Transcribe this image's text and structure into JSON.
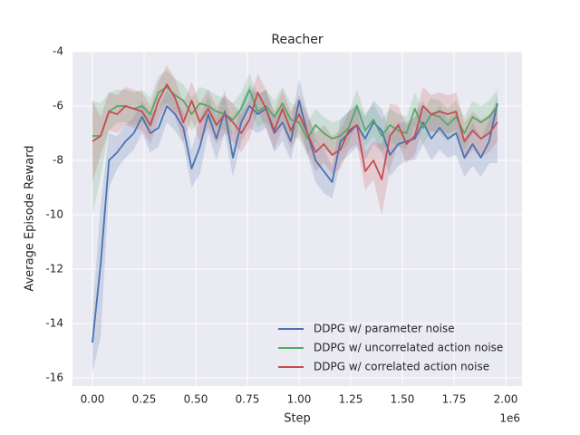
{
  "chart_data": {
    "type": "line",
    "title": "Reacher",
    "x_label": "Step",
    "y_label": "Average Episode Reward",
    "x_offset_label": "1e6",
    "x": [
      0,
      0.04,
      0.08,
      0.12,
      0.16,
      0.2,
      0.24,
      0.28,
      0.32,
      0.36,
      0.4,
      0.44,
      0.48,
      0.52,
      0.56,
      0.6,
      0.64,
      0.68,
      0.72,
      0.76,
      0.8,
      0.84,
      0.88,
      0.92,
      0.96,
      1.0,
      1.04,
      1.08,
      1.12,
      1.16,
      1.2,
      1.24,
      1.28,
      1.32,
      1.36,
      1.4,
      1.44,
      1.48,
      1.52,
      1.56,
      1.6,
      1.64,
      1.68,
      1.72,
      1.76,
      1.8,
      1.84,
      1.88,
      1.92,
      1.96
    ],
    "series": [
      {
        "name": "DDPG w/ parameter noise",
        "color": "#4c72b0",
        "values": [
          -14.7,
          -11.8,
          -8.0,
          -7.7,
          -7.3,
          -7.0,
          -6.4,
          -7.0,
          -6.8,
          -6.0,
          -6.3,
          -6.8,
          -8.3,
          -7.5,
          -6.3,
          -7.2,
          -6.2,
          -7.9,
          -6.6,
          -6.0,
          -6.3,
          -6.1,
          -7.0,
          -6.6,
          -7.3,
          -5.8,
          -7.0,
          -8.0,
          -8.4,
          -8.8,
          -7.3,
          -7.0,
          -6.7,
          -7.2,
          -6.6,
          -6.9,
          -7.8,
          -7.4,
          -7.3,
          -7.2,
          -6.6,
          -7.2,
          -6.8,
          -7.2,
          -7.0,
          -7.9,
          -7.4,
          -7.9,
          -7.3,
          -5.9
        ],
        "lower": [
          -15.8,
          -14.5,
          -9.0,
          -8.3,
          -7.9,
          -7.6,
          -7.0,
          -7.7,
          -7.5,
          -6.6,
          -6.9,
          -7.4,
          -9.0,
          -8.5,
          -7.0,
          -8.0,
          -7.0,
          -8.6,
          -7.3,
          -6.8,
          -7.0,
          -6.8,
          -7.7,
          -7.3,
          -8.0,
          -6.6,
          -7.8,
          -8.8,
          -9.2,
          -9.4,
          -8.1,
          -7.8,
          -7.5,
          -8.0,
          -7.4,
          -7.7,
          -8.6,
          -8.2,
          -8.0,
          -8.0,
          -7.4,
          -8.0,
          -7.6,
          -7.9,
          -7.8,
          -8.6,
          -8.2,
          -8.6,
          -8.1,
          -8.1
        ],
        "upper": [
          -13.6,
          -9.6,
          -7.0,
          -7.1,
          -6.7,
          -6.4,
          -5.8,
          -6.3,
          -6.1,
          -5.4,
          -5.7,
          -6.2,
          -7.6,
          -6.5,
          -5.6,
          -6.4,
          -5.4,
          -7.2,
          -5.9,
          -5.2,
          -5.6,
          -5.4,
          -6.3,
          -5.9,
          -6.6,
          -5.0,
          -6.2,
          -7.2,
          -7.6,
          -8.2,
          -6.5,
          -6.2,
          -5.9,
          -6.4,
          -5.8,
          -6.1,
          -7.0,
          -6.6,
          -6.6,
          -6.4,
          -5.8,
          -6.4,
          -6.0,
          -6.5,
          -6.2,
          -7.2,
          -6.6,
          -7.2,
          -6.5,
          -5.6
        ]
      },
      {
        "name": "DDPG w/ uncorrelated action noise",
        "color": "#55a868",
        "values": [
          -7.1,
          -7.1,
          -6.2,
          -6.0,
          -6.0,
          -6.1,
          -6.0,
          -6.3,
          -5.5,
          -5.3,
          -5.6,
          -5.8,
          -6.3,
          -5.9,
          -6.0,
          -6.2,
          -6.3,
          -6.5,
          -6.1,
          -5.4,
          -6.2,
          -6.0,
          -6.4,
          -5.9,
          -6.5,
          -6.6,
          -7.2,
          -6.7,
          -7.0,
          -7.2,
          -7.1,
          -6.8,
          -6.0,
          -6.9,
          -6.5,
          -7.1,
          -6.7,
          -6.9,
          -7.0,
          -6.1,
          -6.8,
          -6.3,
          -6.4,
          -6.7,
          -6.4,
          -7.0,
          -6.4,
          -6.6,
          -6.4,
          -6.0
        ],
        "lower": [
          -10.0,
          -8.6,
          -6.9,
          -6.6,
          -6.6,
          -6.7,
          -6.6,
          -6.9,
          -6.1,
          -5.9,
          -6.2,
          -6.4,
          -6.9,
          -6.5,
          -6.6,
          -6.8,
          -6.9,
          -7.1,
          -6.7,
          -6.0,
          -6.8,
          -6.6,
          -7.0,
          -6.5,
          -7.1,
          -7.2,
          -7.8,
          -7.3,
          -7.6,
          -7.8,
          -7.7,
          -7.4,
          -6.6,
          -7.5,
          -7.1,
          -7.7,
          -7.3,
          -7.5,
          -7.6,
          -6.7,
          -7.4,
          -6.9,
          -7.0,
          -7.3,
          -7.0,
          -7.6,
          -7.0,
          -7.2,
          -7.0,
          -6.6
        ],
        "upper": [
          -5.8,
          -5.9,
          -5.5,
          -5.4,
          -5.4,
          -5.5,
          -5.4,
          -5.7,
          -4.9,
          -4.7,
          -5.0,
          -5.2,
          -5.7,
          -5.3,
          -5.4,
          -5.6,
          -5.7,
          -5.9,
          -5.5,
          -4.8,
          -5.6,
          -5.4,
          -5.8,
          -5.3,
          -5.9,
          -6.0,
          -6.6,
          -6.1,
          -6.4,
          -6.6,
          -6.5,
          -6.2,
          -5.4,
          -6.3,
          -5.9,
          -6.5,
          -6.1,
          -6.3,
          -6.4,
          -5.5,
          -6.2,
          -5.7,
          -5.8,
          -6.1,
          -5.8,
          -6.4,
          -5.8,
          -6.0,
          -5.8,
          -5.4
        ]
      },
      {
        "name": "DDPG w/ correlated action noise",
        "color": "#c44e52",
        "values": [
          -7.3,
          -7.1,
          -6.2,
          -6.3,
          -6.0,
          -6.1,
          -6.2,
          -6.7,
          -5.8,
          -5.2,
          -5.7,
          -6.6,
          -5.8,
          -6.6,
          -6.1,
          -6.7,
          -6.3,
          -6.6,
          -7.0,
          -6.5,
          -5.5,
          -6.1,
          -6.9,
          -6.1,
          -6.9,
          -6.3,
          -7.0,
          -7.7,
          -7.4,
          -7.8,
          -7.6,
          -6.9,
          -6.7,
          -8.4,
          -8.0,
          -8.7,
          -7.1,
          -6.7,
          -7.4,
          -7.1,
          -6.0,
          -6.3,
          -6.2,
          -6.3,
          -6.2,
          -7.3,
          -6.9,
          -7.2,
          -7.0,
          -6.6
        ],
        "lower": [
          -8.8,
          -7.8,
          -6.9,
          -7.0,
          -6.7,
          -6.8,
          -6.9,
          -7.4,
          -6.5,
          -5.9,
          -6.4,
          -7.3,
          -6.5,
          -7.3,
          -6.8,
          -7.4,
          -7.0,
          -7.3,
          -7.7,
          -7.2,
          -6.2,
          -6.8,
          -7.6,
          -6.8,
          -7.6,
          -7.0,
          -7.7,
          -8.4,
          -8.1,
          -8.5,
          -8.3,
          -7.6,
          -7.4,
          -9.1,
          -8.7,
          -10.0,
          -8.3,
          -7.4,
          -8.1,
          -7.8,
          -6.7,
          -7.0,
          -6.9,
          -7.0,
          -6.9,
          -8.0,
          -7.6,
          -7.9,
          -7.7,
          -7.3
        ],
        "upper": [
          -5.8,
          -6.4,
          -5.5,
          -5.6,
          -5.3,
          -5.4,
          -5.5,
          -6.0,
          -5.1,
          -4.5,
          -5.0,
          -5.9,
          -5.1,
          -5.9,
          -5.4,
          -6.0,
          -5.6,
          -5.9,
          -6.3,
          -5.8,
          -4.8,
          -5.4,
          -6.2,
          -5.4,
          -6.2,
          -5.6,
          -6.3,
          -7.0,
          -6.7,
          -7.1,
          -6.9,
          -6.2,
          -6.0,
          -7.7,
          -7.3,
          -7.4,
          -5.9,
          -6.0,
          -6.7,
          -6.4,
          -5.3,
          -5.6,
          -5.5,
          -5.6,
          -5.5,
          -6.6,
          -6.2,
          -6.5,
          -6.3,
          -5.9
        ]
      }
    ],
    "xlim": [
      -0.0965,
      2.0789
    ],
    "ylim": [
      -16.3,
      -4
    ],
    "xticks": [
      {
        "value": 0,
        "label": "0.00"
      },
      {
        "value": 0.25,
        "label": "0.25"
      },
      {
        "value": 0.5,
        "label": "0.50"
      },
      {
        "value": 0.75,
        "label": "0.75"
      },
      {
        "value": 1,
        "label": "1.00"
      },
      {
        "value": 1.25,
        "label": "1.25"
      },
      {
        "value": 1.5,
        "label": "1.50"
      },
      {
        "value": 1.75,
        "label": "1.75"
      },
      {
        "value": 2,
        "label": "2.00"
      }
    ],
    "yticks": [
      -16,
      -14,
      -12,
      -10,
      -8,
      -6,
      -4
    ],
    "grid": true,
    "legend": "lower right",
    "background": "#eaeaf2"
  }
}
